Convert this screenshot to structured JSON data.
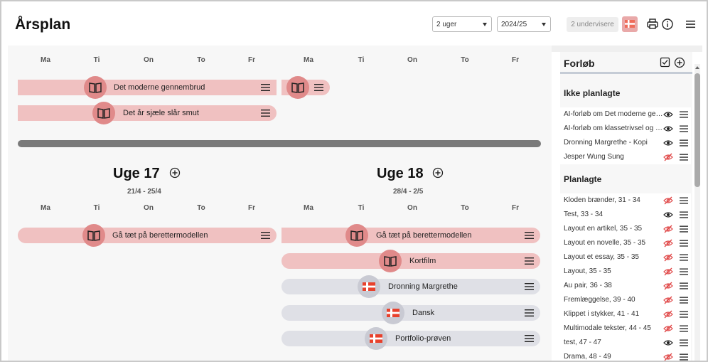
{
  "header": {
    "title": "Årsplan",
    "period_select": "2 uger",
    "year_select": "2024/25",
    "teachers_label": "2 undervisere",
    "icons": [
      "flag-dk-icon",
      "print-icon",
      "info-icon",
      "hamburger-menu-icon"
    ]
  },
  "days": [
    "Ma",
    "Ti",
    "On",
    "To",
    "Fr"
  ],
  "top_rows": {
    "left_bar_1": "Det moderne gennembrud",
    "left_bar_2": "Det år sjæle slår smut"
  },
  "week17": {
    "title": "Uge 17",
    "dates": "21/4 - 25/4",
    "bar_1": "Gå tæt på berettermodellen"
  },
  "week18": {
    "title": "Uge 18",
    "dates": "28/4 - 2/5",
    "bar_1": "Gå tæt på berettermodellen",
    "bar_2": "Kortfilm",
    "bar_3": "Dronning Margrethe",
    "bar_4": "Dansk",
    "bar_5": "Portfolio-prøven"
  },
  "sidebar": {
    "title": "Forløb",
    "unplanned_title": "Ikke planlagte",
    "unplanned": [
      {
        "label": "AI-forløb om Det moderne gennembrud",
        "visible": true
      },
      {
        "label": "AI-forløb om klassetrivsel og fællesskab",
        "visible": true
      },
      {
        "label": "Dronning Margrethe - Kopi",
        "visible": true
      },
      {
        "label": "Jesper Wung Sung",
        "visible": false
      }
    ],
    "planned_title": "Planlagte",
    "planned": [
      {
        "label": "Kloden brænder, 31 - 34",
        "visible": false
      },
      {
        "label": "Test, 33 - 34",
        "visible": true
      },
      {
        "label": "Layout en artikel, 35 - 35",
        "visible": false
      },
      {
        "label": "Layout en novelle, 35 - 35",
        "visible": false
      },
      {
        "label": "Layout et essay, 35 - 35",
        "visible": false
      },
      {
        "label": "Layout, 35 - 35",
        "visible": false
      },
      {
        "label": "Au pair, 36 - 38",
        "visible": false
      },
      {
        "label": "Fremlæggelse, 39 - 40",
        "visible": false
      },
      {
        "label": "Klippet i stykker, 41 - 41",
        "visible": false
      },
      {
        "label": "Multimodale tekster, 44 - 45",
        "visible": false
      },
      {
        "label": "test, 47 - 47",
        "visible": true
      },
      {
        "label": "Drama, 48 - 49",
        "visible": false
      }
    ]
  },
  "colors": {
    "pink_bar": "#f0c1c1",
    "gray_bar": "#dfe0e6",
    "book_circle": "#e08a8a",
    "flag_circle": "#c9cad3",
    "flag_red": "#e8412c"
  }
}
